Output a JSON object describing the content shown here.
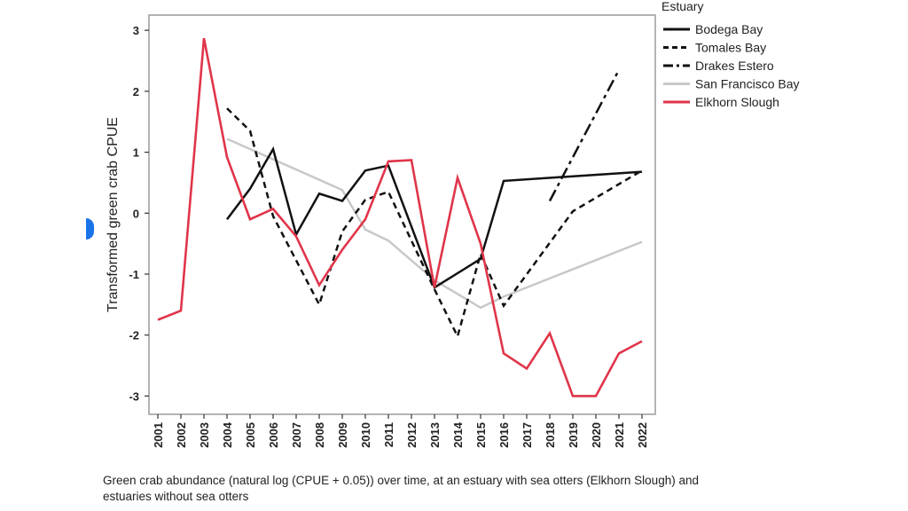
{
  "chart_data": {
    "type": "line",
    "ylabel": "Transformed green crab CPUE",
    "xlabel": "",
    "categories": [
      "2001",
      "2002",
      "2003",
      "2004",
      "2005",
      "2006",
      "2007",
      "2008",
      "2009",
      "2010",
      "2011",
      "2012",
      "2013",
      "2014",
      "2015",
      "2016",
      "2017",
      "2018",
      "2019",
      "2020",
      "2021",
      "2022"
    ],
    "yticks": [
      3,
      2,
      1,
      0,
      -1,
      -2,
      -3
    ],
    "ylim": [
      -3.3,
      3.25
    ],
    "legend_title": "Estuary",
    "legend_position": "top-right, outside plot",
    "series": [
      {
        "name": "Bodega Bay",
        "style": "solid",
        "color": "#111111",
        "points": [
          [
            "2004",
            -0.1
          ],
          [
            "2005",
            0.4
          ],
          [
            "2006",
            1.05
          ],
          [
            "2007",
            -0.35
          ],
          [
            "2008",
            0.32
          ],
          [
            "2009",
            0.2
          ],
          [
            "2010",
            0.7
          ],
          [
            "2011",
            0.78
          ],
          [
            "2013",
            -1.22
          ],
          [
            "2015",
            -0.75
          ],
          [
            "2016",
            0.53
          ],
          [
            "2022",
            0.68
          ]
        ]
      },
      {
        "name": "Tomales Bay",
        "style": "dash",
        "color": "#111111",
        "points": [
          [
            "2004",
            1.72
          ],
          [
            "2005",
            1.35
          ],
          [
            "2006",
            -0.05
          ],
          [
            "2008",
            -1.5
          ],
          [
            "2009",
            -0.3
          ],
          [
            "2010",
            0.22
          ],
          [
            "2011",
            0.35
          ],
          [
            "2013",
            -1.25
          ],
          [
            "2014",
            -2.02
          ],
          [
            "2015",
            -0.67
          ],
          [
            "2016",
            -1.52
          ],
          [
            "2019",
            0.03
          ],
          [
            "2022",
            0.7
          ]
        ]
      },
      {
        "name": "Drakes Estero",
        "style": "dashdot",
        "color": "#111111",
        "points": [
          [
            "2018",
            0.2
          ],
          [
            "2021",
            2.35
          ]
        ]
      },
      {
        "name": "San Francisco Bay",
        "style": "solid",
        "color": "#c8c8c8",
        "points": [
          [
            "2004",
            1.22
          ],
          [
            "2009",
            0.38
          ],
          [
            "2010",
            -0.27
          ],
          [
            "2011",
            -0.45
          ],
          [
            "2013",
            -1.1
          ],
          [
            "2015",
            -1.55
          ],
          [
            "2016",
            -1.37
          ],
          [
            "2022",
            -0.47
          ]
        ]
      },
      {
        "name": "Elkhorn Slough",
        "style": "solid",
        "color": "#e0354a",
        "points": [
          [
            "2001",
            -1.75
          ],
          [
            "2002",
            -1.6
          ],
          [
            "2003",
            2.87
          ],
          [
            "2004",
            0.92
          ],
          [
            "2005",
            -0.1
          ],
          [
            "2006",
            0.07
          ],
          [
            "2007",
            -0.38
          ],
          [
            "2008",
            -1.18
          ],
          [
            "2009",
            -0.6
          ],
          [
            "2010",
            -0.1
          ],
          [
            "2011",
            0.85
          ],
          [
            "2012",
            0.87
          ],
          [
            "2013",
            -1.22
          ],
          [
            "2014",
            0.58
          ],
          [
            "2015",
            -0.5
          ],
          [
            "2016",
            -2.3
          ],
          [
            "2017",
            -2.55
          ],
          [
            "2018",
            -1.97
          ],
          [
            "2019",
            -3.0
          ],
          [
            "2020",
            -3.0
          ],
          [
            "2021",
            -2.3
          ],
          [
            "2022",
            -2.1
          ]
        ]
      }
    ]
  },
  "caption": {
    "line1": "Green crab abundance (natural log (CPUE + 0.05)) over time, at an estuary with sea otters (Elkhorn Slough) and",
    "line2": "estuaries without sea otters"
  }
}
